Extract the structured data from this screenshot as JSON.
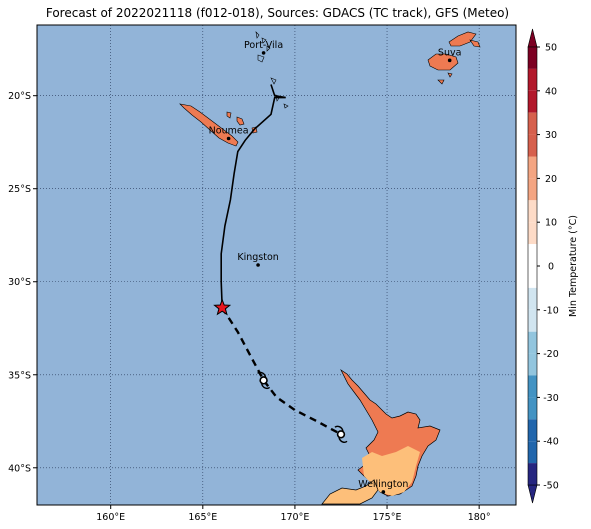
{
  "title": "Forecast of 2022021118 (f012-018), Sources: GDACS (TC track), GFS (Meteo)",
  "map": {
    "lon_range": [
      156,
      182
    ],
    "lat_range": [
      -42,
      -16.2
    ],
    "lon_ticks": [
      {
        "value": 160,
        "label": "160°E"
      },
      {
        "value": 165,
        "label": "165°E"
      },
      {
        "value": 170,
        "label": "170°E"
      },
      {
        "value": 175,
        "label": "175°E"
      },
      {
        "value": 180,
        "label": "180°"
      }
    ],
    "lat_ticks": [
      {
        "value": -20,
        "label": "20°S"
      },
      {
        "value": -25,
        "label": "25°S"
      },
      {
        "value": -30,
        "label": "30°S"
      },
      {
        "value": -35,
        "label": "35°S"
      },
      {
        "value": -40,
        "label": "40°S"
      }
    ],
    "ocean_color": "#92b4d8",
    "grid": "dotted",
    "cities": [
      {
        "name": "Port-Vila",
        "lon": 168.3,
        "lat": -17.7
      },
      {
        "name": "Suva",
        "lon": 178.4,
        "lat": -18.1
      },
      {
        "name": "Noumea",
        "lon": 166.4,
        "lat": -22.3
      },
      {
        "name": "Kingston",
        "lon": 168.0,
        "lat": -29.1
      },
      {
        "name": "Wellington",
        "lon": 174.8,
        "lat": -41.3
      }
    ],
    "track_observed": [
      [
        168.7,
        -19.4
      ],
      [
        168.9,
        -20.0
      ],
      [
        169.5,
        -20.1
      ],
      [
        168.9,
        -20.1
      ],
      [
        168.7,
        -21.0
      ],
      [
        167.8,
        -21.8
      ],
      [
        167.3,
        -22.4
      ],
      [
        166.9,
        -23.0
      ],
      [
        166.7,
        -24.2
      ],
      [
        166.5,
        -25.6
      ],
      [
        166.2,
        -27.0
      ],
      [
        166.0,
        -28.5
      ],
      [
        166.0,
        -30.0
      ],
      [
        166.05,
        -31.4
      ]
    ],
    "track_forecast": [
      [
        166.05,
        -31.4
      ],
      [
        166.9,
        -32.7
      ],
      [
        167.6,
        -34.0
      ],
      [
        168.3,
        -35.3
      ],
      [
        169.0,
        -36.2
      ],
      [
        170.0,
        -36.9
      ],
      [
        171.2,
        -37.5
      ],
      [
        172.5,
        -38.2
      ]
    ],
    "current_position": {
      "lon": 166.05,
      "lat": -31.4,
      "marker": "star-icon",
      "color": "#e8141e"
    },
    "cyclone_symbols": [
      {
        "lon": 168.3,
        "lat": -35.3
      },
      {
        "lon": 172.5,
        "lat": -38.2
      }
    ]
  },
  "colorbar": {
    "label": "Min Temperature (°C)",
    "ticks": [
      50,
      40,
      30,
      20,
      10,
      0,
      -10,
      -20,
      -30,
      -40,
      -50
    ],
    "colors": [
      "#7c0022",
      "#b2182b",
      "#d6604d",
      "#f4a582",
      "#fddbc7",
      "#ffffff",
      "#d1e5f0",
      "#92c5de",
      "#4393c3",
      "#2166ac",
      "#262680"
    ]
  }
}
